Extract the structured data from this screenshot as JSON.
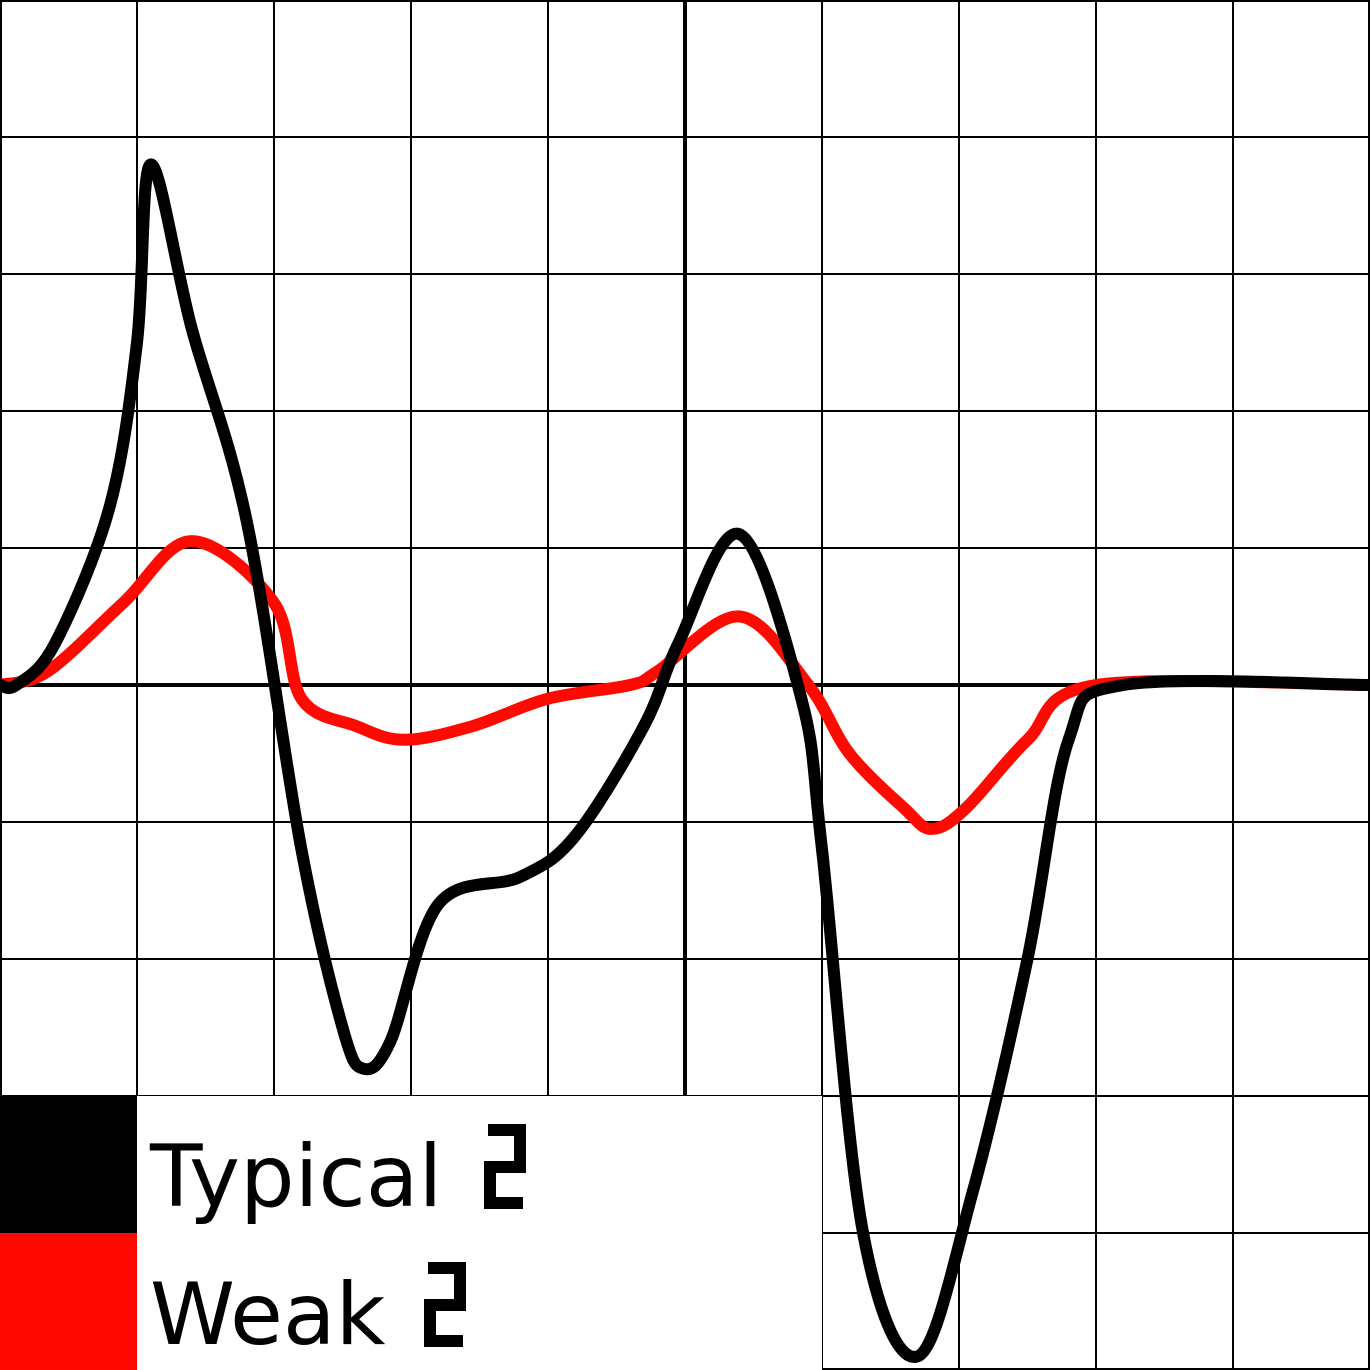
{
  "chart_data": {
    "type": "line",
    "xlim": [
      -5,
      5
    ],
    "ylim": [
      -5,
      5
    ],
    "grid": true,
    "axes": "zero-crossing",
    "legend_placement": "bottom-left",
    "series": [
      {
        "name": "Typical",
        "symbol": "pulse-step-icon",
        "color": "#000000",
        "points": [
          [
            -5.0,
            0.0
          ],
          [
            -4.88,
            0.0
          ],
          [
            -4.6,
            0.3
          ],
          [
            -4.2,
            1.3
          ],
          [
            -4.0,
            2.5
          ],
          [
            -3.9,
            3.8
          ],
          [
            -3.6,
            2.6
          ],
          [
            -3.2,
            1.2
          ],
          [
            -2.8,
            -1.2
          ],
          [
            -2.5,
            -2.5
          ],
          [
            -2.35,
            -2.8
          ],
          [
            -2.15,
            -2.6
          ],
          [
            -1.8,
            -1.6
          ],
          [
            -1.2,
            -1.4
          ],
          [
            -0.8,
            -1.1
          ],
          [
            -0.3,
            -0.3
          ],
          [
            -0.05,
            0.3
          ],
          [
            0.4,
            1.1
          ],
          [
            0.85,
            -0.1
          ],
          [
            1.0,
            -1.2
          ],
          [
            1.3,
            -4.0
          ],
          [
            1.7,
            -4.9
          ],
          [
            2.1,
            -3.7
          ],
          [
            2.5,
            -2.0
          ],
          [
            2.8,
            -0.4
          ],
          [
            3.2,
            0.0
          ],
          [
            5.0,
            0.0
          ]
        ]
      },
      {
        "name": "Weak",
        "symbol": "pulse-step-icon",
        "color": "#ff0a00",
        "points": [
          [
            -5.0,
            0.0
          ],
          [
            -4.65,
            0.1
          ],
          [
            -4.1,
            0.6
          ],
          [
            -3.6,
            1.05
          ],
          [
            -3.0,
            0.6
          ],
          [
            -2.8,
            -0.1
          ],
          [
            -2.4,
            -0.3
          ],
          [
            -2.05,
            -0.4
          ],
          [
            -1.55,
            -0.3
          ],
          [
            -1.0,
            -0.1
          ],
          [
            -0.4,
            0.0
          ],
          [
            -0.2,
            0.1
          ],
          [
            0.4,
            0.5
          ],
          [
            0.9,
            0.0
          ],
          [
            1.2,
            -0.5
          ],
          [
            1.6,
            -0.9
          ],
          [
            1.8,
            -1.05
          ],
          [
            2.05,
            -0.9
          ],
          [
            2.5,
            -0.4
          ],
          [
            3.0,
            0.0
          ],
          [
            5.0,
            0.0
          ]
        ]
      }
    ]
  }
}
